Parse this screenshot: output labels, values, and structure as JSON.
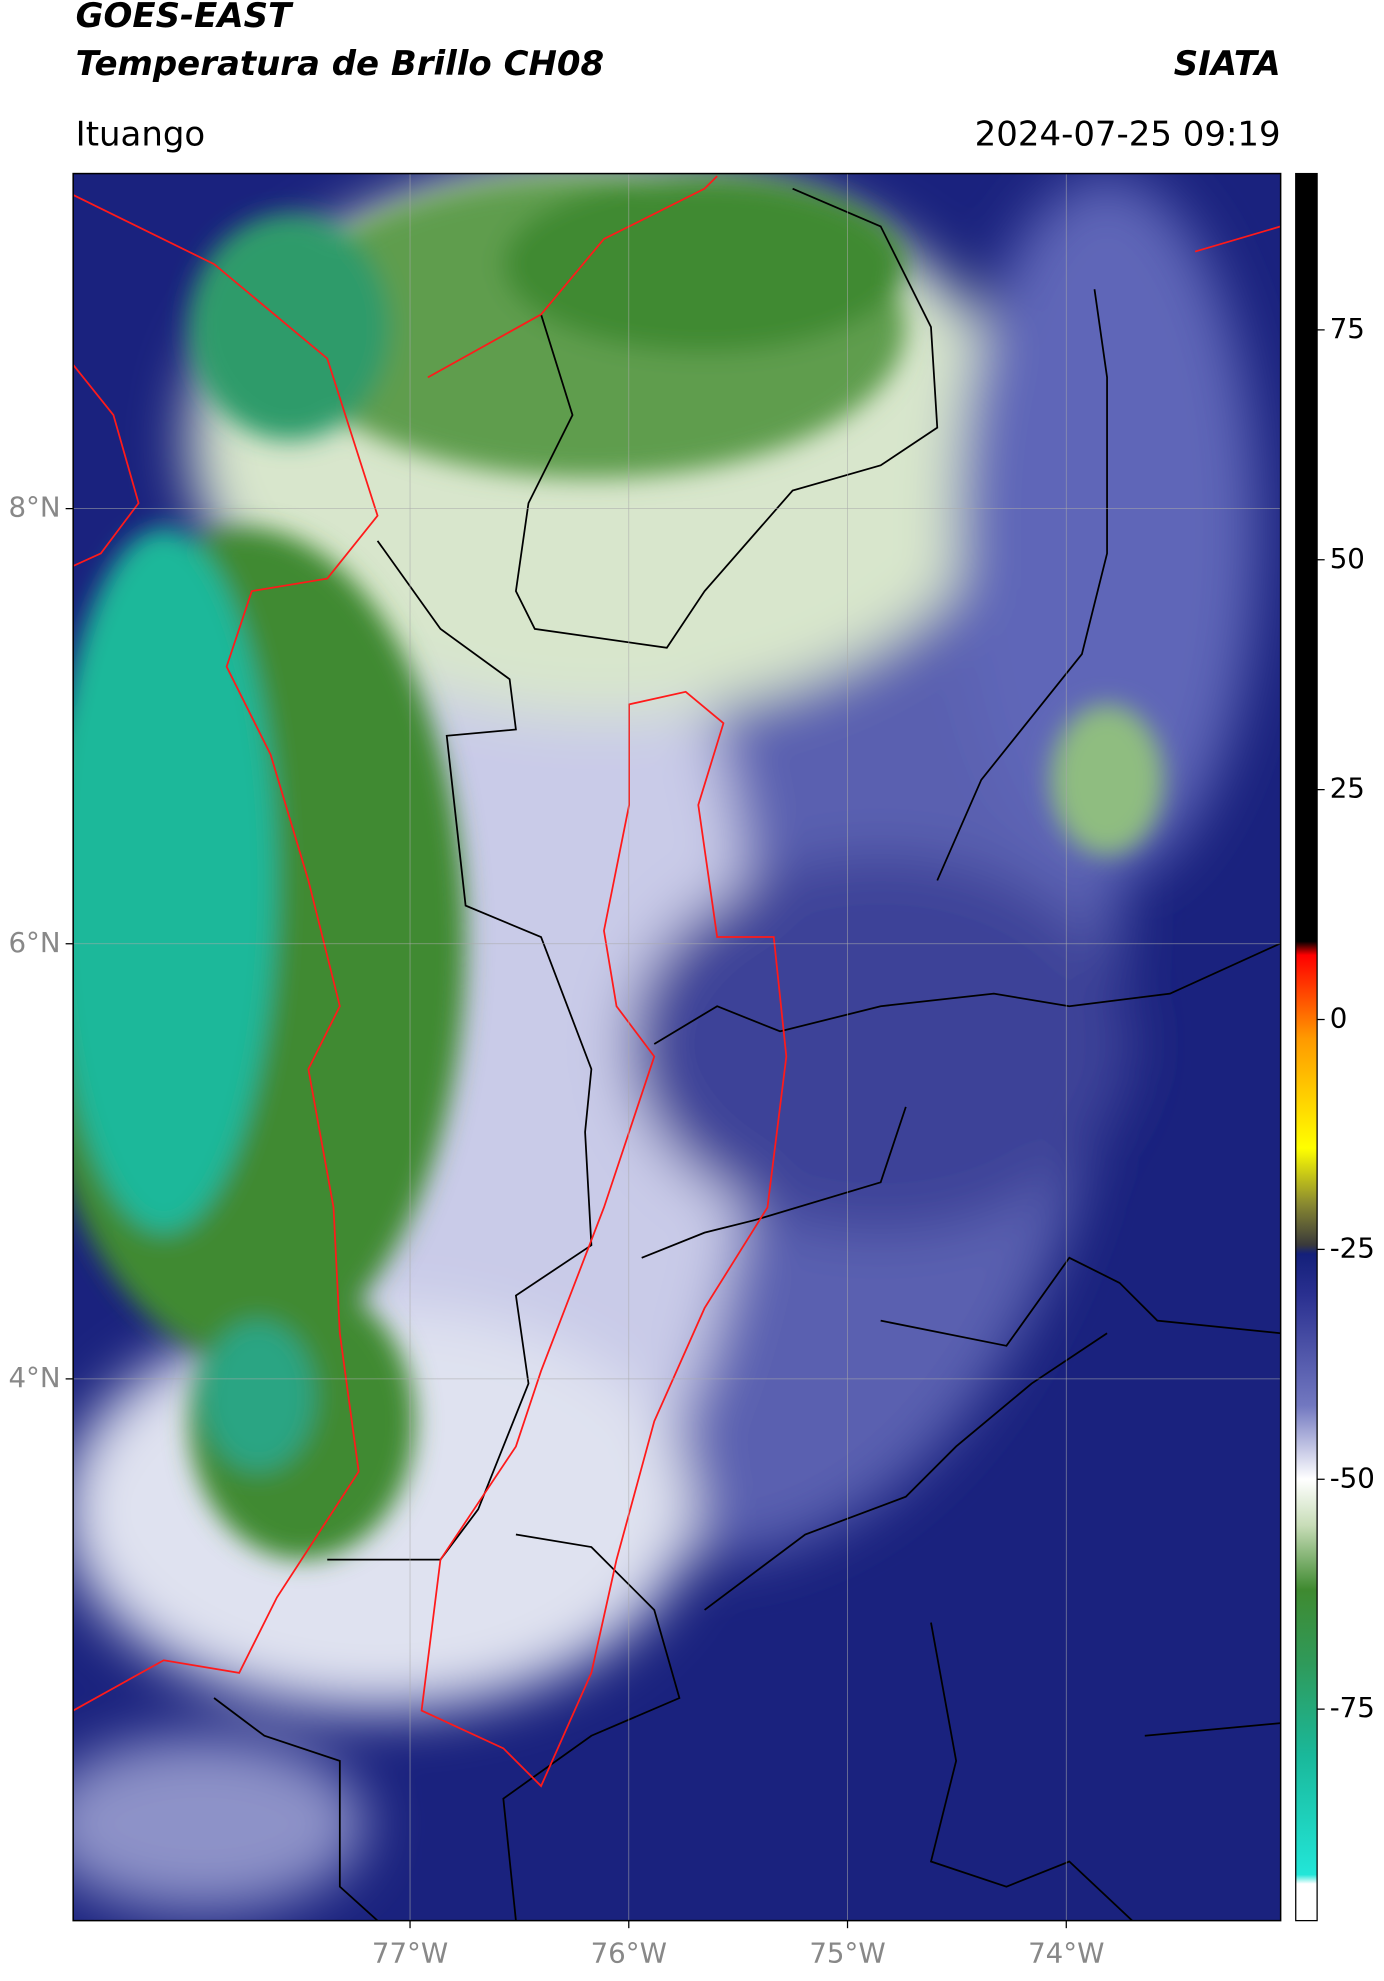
{
  "header": {
    "title": "GOES-EAST",
    "subtitle": "Temperatura de Brillo CH08",
    "brand": "SIATA",
    "location": "Ituango",
    "timestamp": "2024-07-25 09:19"
  },
  "map": {
    "lon_lim": [
      -78.54,
      -73.02
    ],
    "lat_lim": [
      1.51,
      9.54
    ],
    "lon_ticks": [
      {
        "value": -77,
        "label": "77°W"
      },
      {
        "value": -76,
        "label": "76°W"
      },
      {
        "value": -75,
        "label": "75°W"
      },
      {
        "value": -74,
        "label": "74°W"
      }
    ],
    "lat_ticks": [
      {
        "value": 8,
        "label": "8°N"
      },
      {
        "value": 6,
        "label": "6°N"
      },
      {
        "value": 4,
        "label": "4°N"
      }
    ]
  },
  "colorbar": {
    "lim": [
      -98,
      92
    ],
    "ticks": [
      75,
      50,
      25,
      0,
      -25,
      -50,
      -75
    ],
    "colors": [
      {
        "value": -98,
        "color": "#ffffff"
      },
      {
        "value": -94,
        "color": "#ffffff"
      },
      {
        "value": -93,
        "color": "#22e6d8"
      },
      {
        "value": -80,
        "color": "#1ab89a"
      },
      {
        "value": -70,
        "color": "#2f9a5a"
      },
      {
        "value": -62,
        "color": "#3f8a30"
      },
      {
        "value": -55,
        "color": "#c8ddb8"
      },
      {
        "value": -50,
        "color": "#ffffff"
      },
      {
        "value": -42,
        "color": "#7278c0"
      },
      {
        "value": -30,
        "color": "#2a3090"
      },
      {
        "value": -25.5,
        "color": "#14207a"
      },
      {
        "value": -24.5,
        "color": "#3a3a3a"
      },
      {
        "value": -20,
        "color": "#8a8a30"
      },
      {
        "value": -14,
        "color": "#ffff00"
      },
      {
        "value": -2,
        "color": "#ff9900"
      },
      {
        "value": 7,
        "color": "#ff0000"
      },
      {
        "value": 8.5,
        "color": "#000000"
      },
      {
        "value": 92,
        "color": "#000000"
      }
    ]
  }
}
